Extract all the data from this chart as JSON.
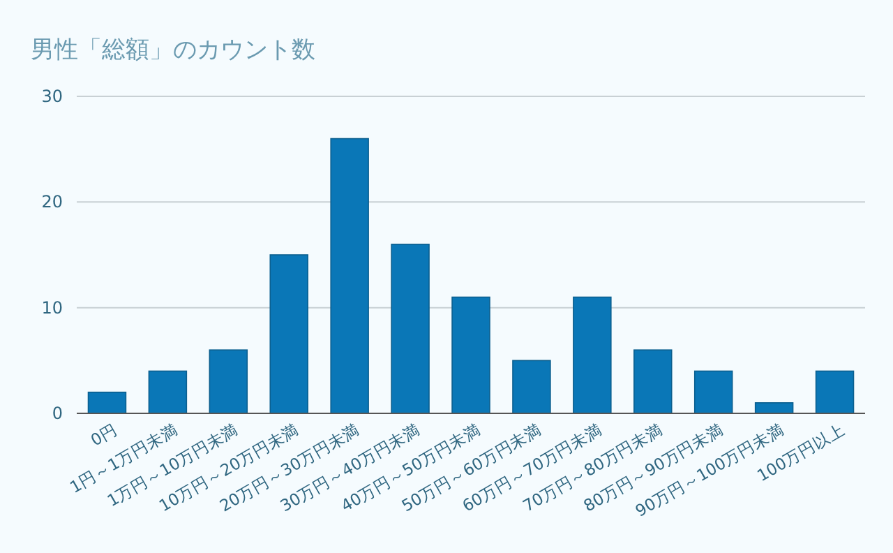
{
  "chart_data": {
    "type": "bar",
    "title": "男性「総額」のカウント数",
    "categories": [
      "0円",
      "1円～1万円未満",
      "1万円～10万円未満",
      "10万円～20万円未満",
      "20万円～30万円未満",
      "30万円～40万円未満",
      "40万円～50万円未満",
      "50万円～60万円未満",
      "60万円～70万円未満",
      "70万円～80万円未満",
      "80万円～90万円未満",
      "90万円～100万円未満",
      "100万円以上"
    ],
    "values": [
      2,
      4,
      6,
      15,
      26,
      16,
      11,
      5,
      11,
      6,
      4,
      1,
      4
    ],
    "color": "#0a77b7",
    "ylim": [
      0,
      30
    ],
    "yticks": [
      0,
      10,
      20,
      30
    ],
    "grid": "y"
  }
}
